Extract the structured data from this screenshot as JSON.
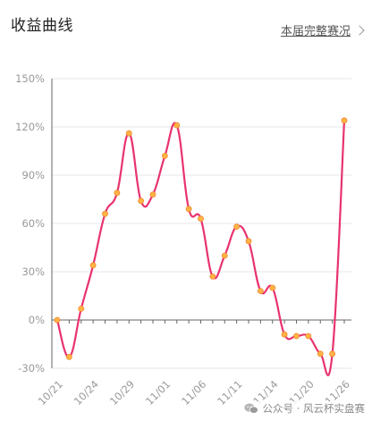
{
  "header": {
    "title": "收益曲线",
    "link_label": "本届完整赛况"
  },
  "watermark": {
    "text": "公众号 · 风云杯实盘赛",
    "icon": "wechat-icon"
  },
  "colors": {
    "line": "#e8336e",
    "marker_fill": "#ffb347",
    "marker_stroke": "#f08a2a",
    "axis": "#666666",
    "grid": "#e6e6ee",
    "tick_label": "#999999"
  },
  "chart_data": {
    "type": "line",
    "title": "收益曲线",
    "xlabel": "",
    "ylabel": "",
    "ylim": [
      -30,
      150
    ],
    "yticks": [
      -30,
      0,
      30,
      60,
      90,
      120,
      150
    ],
    "ytick_labels": [
      "-30%",
      "0%",
      "30%",
      "60%",
      "90%",
      "120%",
      "150%"
    ],
    "grid": true,
    "x_start_label": "10/21",
    "x_end_label": "11/26",
    "xtick_labels": [
      "10/21",
      "10/24",
      "10/29",
      "11/01",
      "11/06",
      "11/11",
      "11/14",
      "11/20",
      "11/26"
    ],
    "xtick_index": [
      0,
      3,
      6,
      9,
      12,
      15,
      18,
      21,
      24
    ],
    "series": [
      {
        "values": [
          0,
          -23,
          7,
          34,
          66,
          79,
          116,
          74,
          78,
          102,
          121,
          69,
          63,
          27,
          40,
          58,
          49,
          18,
          20,
          -9,
          -10,
          -10,
          -21,
          -21,
          124
        ]
      }
    ]
  }
}
